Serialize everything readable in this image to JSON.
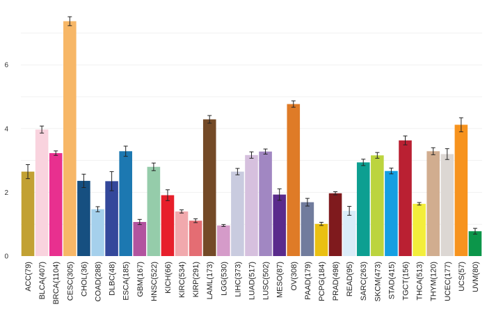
{
  "chart_data": {
    "type": "bar",
    "title": "",
    "xlabel": "",
    "ylabel": "",
    "ylim": [
      0,
      7.7
    ],
    "yticks": [
      0,
      2,
      4,
      6
    ],
    "grid": true,
    "categories": [
      "ACC(79)",
      "BLCA(407)",
      "BRCA(1104)",
      "CESC(305)",
      "CHOL(36)",
      "COAD(288)",
      "DLBC(48)",
      "ESCA(185)",
      "GBM(167)",
      "HNSC(522)",
      "KICH(66)",
      "KIRC(534)",
      "KIRP(291)",
      "LAML(173)",
      "LGG(530)",
      "LIHC(373)",
      "LUAD(517)",
      "LUSC(502)",
      "MESO(87)",
      "OV(308)",
      "PAAD(179)",
      "PCPG(184)",
      "PRAD(498)",
      "READ(95)",
      "SARC(263)",
      "SKCM(473)",
      "STAD(415)",
      "TGCT(156)",
      "THCA(513)",
      "THYM(120)",
      "UCEC(177)",
      "UCS(57)",
      "UVM(80)"
    ],
    "values": [
      2.65,
      3.97,
      3.23,
      7.37,
      2.36,
      1.47,
      2.35,
      3.29,
      1.07,
      2.8,
      1.91,
      1.4,
      1.11,
      4.29,
      0.96,
      2.65,
      3.17,
      3.28,
      1.93,
      4.77,
      1.69,
      1.01,
      1.97,
      1.42,
      2.94,
      3.16,
      2.67,
      3.63,
      1.64,
      3.29,
      3.2,
      4.12,
      0.78
    ],
    "errors": [
      0.22,
      0.11,
      0.07,
      0.14,
      0.21,
      0.08,
      0.3,
      0.16,
      0.08,
      0.12,
      0.17,
      0.05,
      0.06,
      0.12,
      0.03,
      0.1,
      0.1,
      0.08,
      0.18,
      0.1,
      0.12,
      0.05,
      0.05,
      0.14,
      0.1,
      0.09,
      0.09,
      0.14,
      0.04,
      0.11,
      0.17,
      0.22,
      0.09
    ],
    "colors": [
      "#c2a133",
      "#f9d3de",
      "#e8308f",
      "#f7b767",
      "#164f80",
      "#a5d0ec",
      "#34489b",
      "#1c78b1",
      "#b2549f",
      "#95ccaa",
      "#e71f2b",
      "#f1a9ad",
      "#e46d73",
      "#744a27",
      "#d59bc9",
      "#c9cbdf",
      "#d6c0de",
      "#a187c2",
      "#5a2b8c",
      "#df7b27",
      "#717c9d",
      "#eac012",
      "#7f1a1d",
      "#daecf8",
      "#0d9f91",
      "#bcd43e",
      "#159fe2",
      "#ba2032",
      "#f3ee3b",
      "#d1ad8f",
      "#dcd7d3",
      "#f7931e",
      "#0c964a"
    ]
  }
}
